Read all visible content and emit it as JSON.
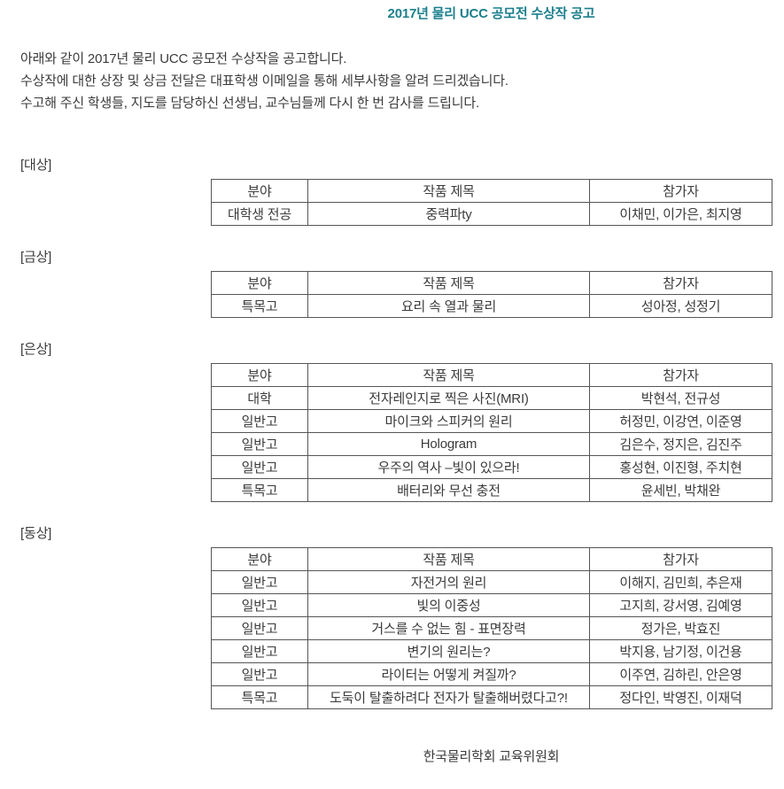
{
  "page": {
    "title": "2017년 물리 UCC 공모전 수상작 공고",
    "title_color": "#1b7f8c",
    "intro_lines": [
      "아래와 같이 2017년 물리 UCC 공모전 수상작을 공고합니다.",
      "수상작에 대한 상장 및 상금 전달은 대표학생 이메일을 통해 세부사항을 알려 드리겠습니다.",
      "수고해 주신 학생들, 지도를 담당하신 선생님, 교수님들께 다시 한 번 감사를 드립니다."
    ],
    "footer": "한국물리학회 교육위원회"
  },
  "table_headers": [
    "분야",
    "작품 제목",
    "참가자"
  ],
  "sections": [
    {
      "label": "[대상]",
      "rows": [
        [
          "대학생 전공",
          "중력파ty",
          "이채민, 이가은, 최지영"
        ]
      ]
    },
    {
      "label": "[금상]",
      "rows": [
        [
          "특목고",
          "요리 속 열과 물리",
          "성아정, 성정기"
        ]
      ]
    },
    {
      "label": "[은상]",
      "rows": [
        [
          "대학",
          "전자레인지로 찍은 사진(MRI)",
          "박현석, 전규성"
        ],
        [
          "일반고",
          "마이크와 스피커의 원리",
          "허정민, 이강연, 이준영"
        ],
        [
          "일반고",
          "Hologram",
          "김은수, 정지은, 김진주"
        ],
        [
          "일반고",
          "우주의 역사 –빛이 있으라!",
          "홍성현, 이진형, 주치현"
        ],
        [
          "특목고",
          "배터리와 무선 충전",
          "윤세빈, 박채완"
        ]
      ]
    },
    {
      "label": "[동상]",
      "rows": [
        [
          "일반고",
          "자전거의 원리",
          "이해지, 김민희, 추은재"
        ],
        [
          "일반고",
          "빛의 이중성",
          "고지희, 강서영, 김예영"
        ],
        [
          "일반고",
          "거스를 수 없는 힘 - 표면장력",
          "정가은, 박효진"
        ],
        [
          "일반고",
          "변기의 원리는?",
          "박지용, 남기정, 이건용"
        ],
        [
          "일반고",
          "라이터는 어떻게 켜질까?",
          "이주연, 김하린, 안은영"
        ],
        [
          "특목고",
          "도둑이 탈출하려다 전자가 탈출해버렸다고?!",
          "정다인, 박영진, 이재덕"
        ]
      ]
    }
  ]
}
